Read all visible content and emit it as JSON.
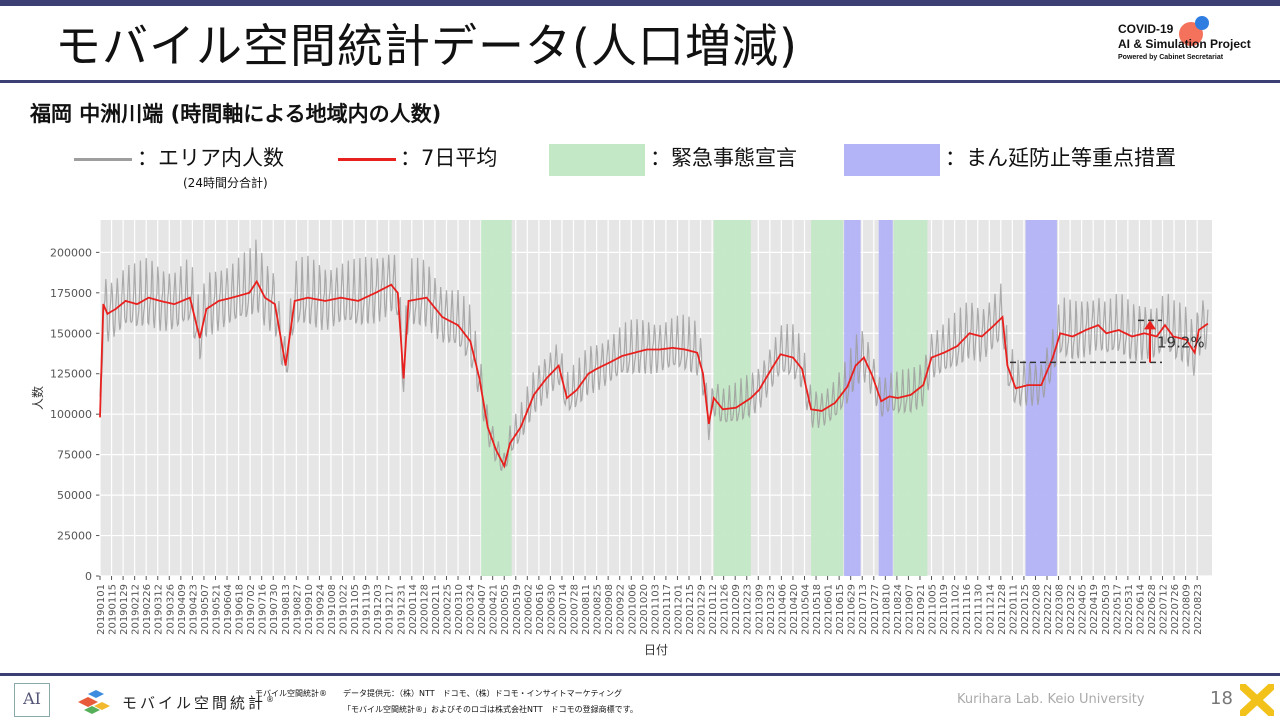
{
  "header": {
    "title": "モバイル空間統計データ(人口増減)",
    "logo_line1": "COVID-19",
    "logo_line2": "AI & Simulation Project",
    "logo_line3": "Powered by Cabinet Secretariat",
    "logo_colors": [
      "#f4715c",
      "#2f7de1"
    ]
  },
  "subtitle": "福岡 中洲川端 (時間軸による地域内の人数)",
  "legend": {
    "daily_label": "：エリア内人数",
    "daily_note": "(24時間分合計)",
    "avg_label": "：7日平均",
    "emergency_label": "：緊急事態宣言",
    "priority_label": "：まん延防止等重点措置",
    "daily_color": "#9e9e9e",
    "avg_color": "#e8201e",
    "emergency_color": "#c3e8c6",
    "priority_color": "#b3b3f7"
  },
  "chart_data": {
    "type": "line",
    "xlabel": "日付",
    "ylabel": "人数",
    "ylim": [
      0,
      220000
    ],
    "yticks": [
      0,
      25000,
      50000,
      75000,
      100000,
      125000,
      150000,
      175000,
      200000
    ],
    "ytick_labels": [
      "0",
      "25000",
      "50000",
      "75000",
      "100000",
      "125000",
      "150000",
      "175000",
      "200000"
    ],
    "x_date_range": [
      "2019-01-01",
      "2022-09-10"
    ],
    "xtick_labels": [
      "20190101",
      "20190115",
      "20190129",
      "20190212",
      "20190226",
      "20190312",
      "20190326",
      "20190409",
      "20190423",
      "20190507",
      "20190521",
      "20190604",
      "20190618",
      "20190702",
      "20190716",
      "20190730",
      "20190813",
      "20190827",
      "20190910",
      "20190924",
      "20191008",
      "20191022",
      "20191105",
      "20191119",
      "20191203",
      "20191217",
      "20191231",
      "20200114",
      "20200128",
      "20200211",
      "20200225",
      "20200310",
      "20200324",
      "20200407",
      "20200421",
      "20200505",
      "20200519",
      "20200602",
      "20200616",
      "20200630",
      "20200714",
      "20200728",
      "20200811",
      "20200825",
      "20200908",
      "20200922",
      "20201006",
      "20201020",
      "20201103",
      "20201117",
      "20201201",
      "20201215",
      "20201229",
      "20210112",
      "20210126",
      "20210209",
      "20210223",
      "20210309",
      "20210323",
      "20210406",
      "20210420",
      "20210504",
      "20210518",
      "20210601",
      "20210615",
      "20210629",
      "20210713",
      "20210727",
      "20210810",
      "20210824",
      "20210907",
      "20210921",
      "20211005",
      "20211019",
      "20211102",
      "20211116",
      "20211130",
      "20211214",
      "20211228",
      "20220111",
      "20220125",
      "20220208",
      "20220222",
      "20220308",
      "20220322",
      "20220405",
      "20220419",
      "20220503",
      "20220517",
      "20220531",
      "20220614",
      "20220628",
      "20220712",
      "20220726",
      "20220809",
      "20220823"
    ],
    "grid": true,
    "background": "#e6e6e6",
    "emergency_periods": [
      [
        "2020-04-07",
        "2020-05-14"
      ],
      [
        "2021-01-14",
        "2021-02-28"
      ],
      [
        "2021-05-12",
        "2021-06-20"
      ],
      [
        "2021-08-20",
        "2021-09-30"
      ]
    ],
    "priority_periods": [
      [
        "2021-06-21",
        "2021-07-11"
      ],
      [
        "2021-08-02",
        "2021-08-19"
      ],
      [
        "2022-01-27",
        "2022-03-06"
      ]
    ],
    "avg_series": {
      "name": "7日平均",
      "dates": [
        "2019-01-01",
        "2019-01-05",
        "2019-01-10",
        "2019-01-20",
        "2019-02-01",
        "2019-02-15",
        "2019-03-01",
        "2019-03-15",
        "2019-04-01",
        "2019-04-20",
        "2019-05-02",
        "2019-05-10",
        "2019-05-25",
        "2019-06-10",
        "2019-07-01",
        "2019-07-10",
        "2019-07-20",
        "2019-08-01",
        "2019-08-14",
        "2019-08-25",
        "2019-09-10",
        "2019-10-01",
        "2019-10-20",
        "2019-11-10",
        "2019-12-01",
        "2019-12-20",
        "2019-12-28",
        "2020-01-04",
        "2020-01-10",
        "2020-02-01",
        "2020-02-20",
        "2020-03-10",
        "2020-03-25",
        "2020-04-05",
        "2020-04-15",
        "2020-04-25",
        "2020-05-05",
        "2020-05-12",
        "2020-05-25",
        "2020-06-10",
        "2020-06-25",
        "2020-07-10",
        "2020-07-20",
        "2020-08-01",
        "2020-08-15",
        "2020-08-25",
        "2020-09-10",
        "2020-09-25",
        "2020-10-10",
        "2020-10-25",
        "2020-11-10",
        "2020-11-25",
        "2020-12-10",
        "2020-12-25",
        "2021-01-01",
        "2021-01-08",
        "2021-01-14",
        "2021-01-25",
        "2021-02-10",
        "2021-02-28",
        "2021-03-10",
        "2021-03-25",
        "2021-04-05",
        "2021-04-20",
        "2021-05-01",
        "2021-05-12",
        "2021-05-25",
        "2021-06-10",
        "2021-06-25",
        "2021-07-05",
        "2021-07-15",
        "2021-07-25",
        "2021-08-05",
        "2021-08-15",
        "2021-08-25",
        "2021-09-10",
        "2021-09-25",
        "2021-10-05",
        "2021-10-20",
        "2021-11-05",
        "2021-11-20",
        "2021-12-05",
        "2021-12-20",
        "2021-12-30",
        "2022-01-05",
        "2022-01-15",
        "2022-01-30",
        "2022-02-15",
        "2022-03-01",
        "2022-03-10",
        "2022-03-25",
        "2022-04-10",
        "2022-04-25",
        "2022-05-05",
        "2022-05-20",
        "2022-06-05",
        "2022-06-20",
        "2022-07-05",
        "2022-07-15",
        "2022-07-25",
        "2022-08-10",
        "2022-08-20",
        "2022-08-25",
        "2022-09-05"
      ],
      "values": [
        98000,
        168000,
        162000,
        165000,
        170000,
        168000,
        172000,
        170000,
        168000,
        172000,
        147000,
        165000,
        170000,
        172000,
        175000,
        182000,
        172000,
        168000,
        130000,
        170000,
        172000,
        170000,
        172000,
        170000,
        175000,
        180000,
        175000,
        122000,
        170000,
        172000,
        160000,
        155000,
        145000,
        122000,
        92000,
        78000,
        68000,
        82000,
        92000,
        112000,
        122000,
        130000,
        110000,
        115000,
        125000,
        128000,
        132000,
        136000,
        138000,
        140000,
        140000,
        141000,
        140000,
        138000,
        125000,
        94000,
        110000,
        103000,
        104000,
        110000,
        115000,
        128000,
        137000,
        135000,
        128000,
        103000,
        102000,
        107000,
        117000,
        130000,
        135000,
        124000,
        108000,
        111000,
        110000,
        112000,
        118000,
        135000,
        138000,
        142000,
        150000,
        148000,
        155000,
        160000,
        130000,
        116000,
        118000,
        118000,
        135000,
        150000,
        148000,
        152000,
        155000,
        150000,
        152000,
        148000,
        150000,
        148000,
        155000,
        148000,
        146000,
        138000,
        152000,
        156000
      ],
      "color": "#e8201e"
    },
    "daily_series": {
      "name": "エリア内人数",
      "color": "#9e9e9e",
      "weekday_peaks_note": "weekly oscillation around the 7-day average"
    },
    "annotation": {
      "label": "19.2%",
      "low": 132000,
      "high": 158000
    }
  },
  "footer": {
    "ai_mark": "AI",
    "brand": "モバイル空間統計",
    "brand_mark": "®",
    "small_brand": "モバイル空間統計®",
    "provider": "データ提供元：（株）NTT　ドコモ、（株）ドコモ・インサイトマーケティング",
    "trademark": "「モバイル空間統計®」およびそのロゴは株式会社NTT　ドコモの登録商標です。",
    "lab": "Kurihara Lab. Keio University",
    "page_number": "18"
  }
}
